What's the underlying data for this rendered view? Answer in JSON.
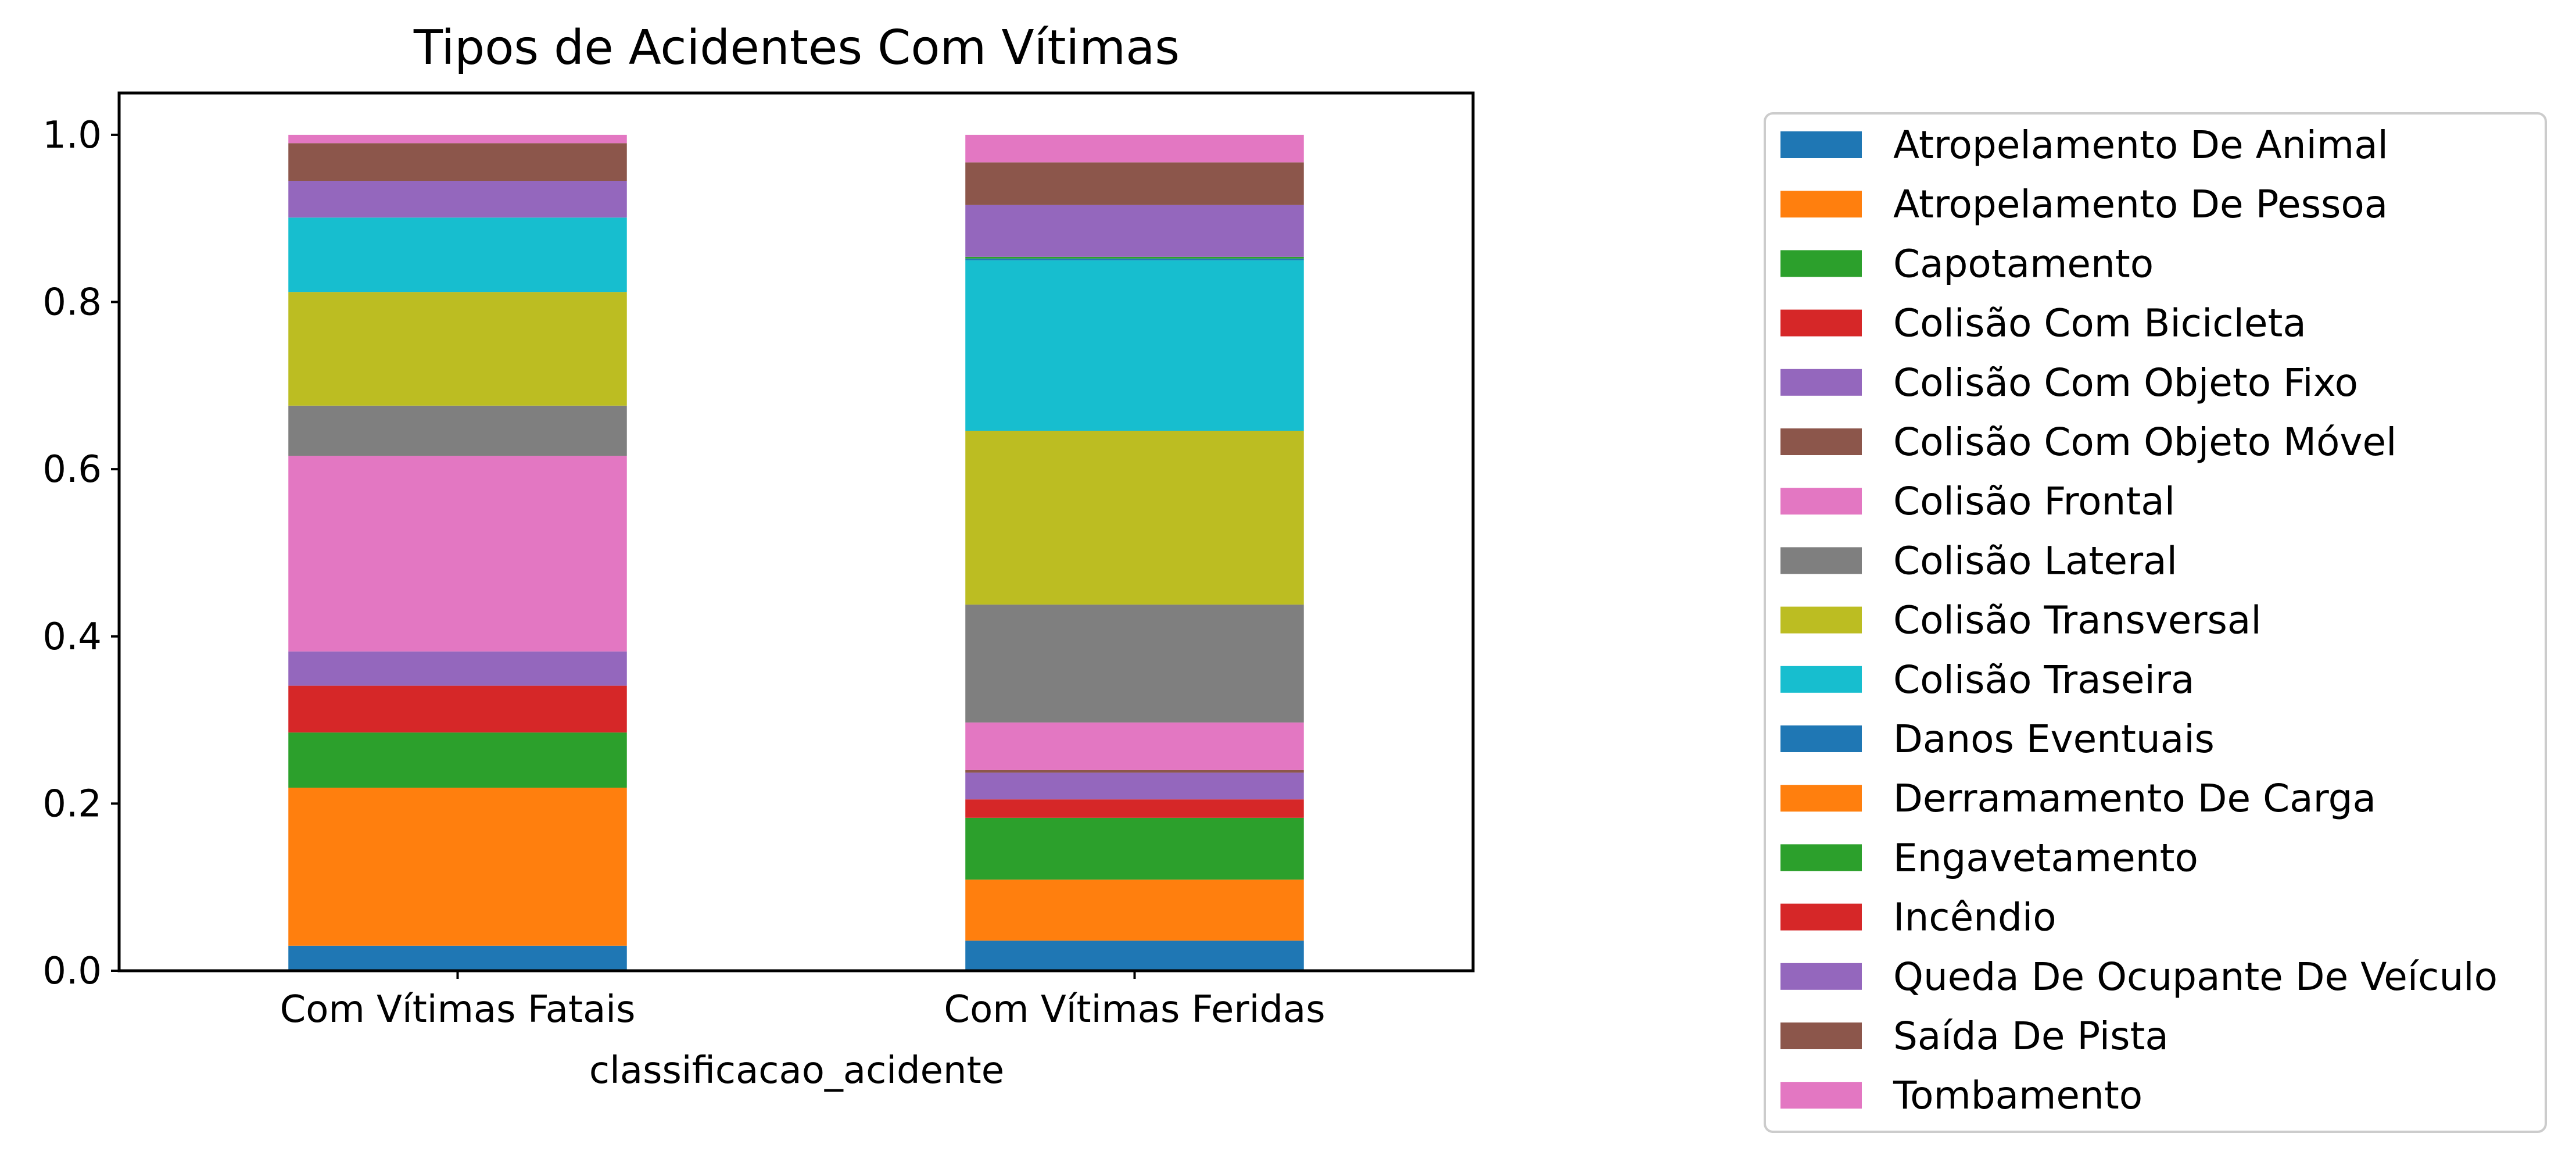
{
  "chart_data": {
    "type": "bar",
    "stacked": true,
    "title": "Tipos de Acidentes Com Vítimas",
    "xlabel": "classificacao_acidente",
    "ylabel": "",
    "categories": [
      "Com Vítimas Fatais",
      "Com Vítimas Feridas"
    ],
    "ylim": [
      0.0,
      1.05
    ],
    "yticks": [
      "0.0",
      "0.2",
      "0.4",
      "0.6",
      "0.8",
      "1.0"
    ],
    "grid": false,
    "legend_position": "right",
    "series": [
      {
        "name": "Atropelamento De Animal",
        "color": "#1f77b4",
        "values": [
          0.03,
          0.036
        ]
      },
      {
        "name": "Atropelamento De Pessoa",
        "color": "#ff7f0e",
        "values": [
          0.189,
          0.073
        ]
      },
      {
        "name": "Capotamento",
        "color": "#2ca02c",
        "values": [
          0.066,
          0.074
        ]
      },
      {
        "name": "Colisão Com Bicicleta",
        "color": "#d62728",
        "values": [
          0.056,
          0.022
        ]
      },
      {
        "name": "Colisão Com Objeto Fixo",
        "color": "#9467bd",
        "values": [
          0.041,
          0.032
        ]
      },
      {
        "name": "Colisão Com Objeto Móvel",
        "color": "#8c564b",
        "values": [
          0.0,
          0.003
        ]
      },
      {
        "name": "Colisão Frontal",
        "color": "#e377c2",
        "values": [
          0.234,
          0.057
        ]
      },
      {
        "name": "Colisão Lateral",
        "color": "#7f7f7f",
        "values": [
          0.06,
          0.141
        ]
      },
      {
        "name": "Colisão Transversal",
        "color": "#bcbd22",
        "values": [
          0.136,
          0.208
        ]
      },
      {
        "name": "Colisão Traseira",
        "color": "#17becf",
        "values": [
          0.089,
          0.204
        ]
      },
      {
        "name": "Danos Eventuais",
        "color": "#1f77b4",
        "values": [
          0.0,
          0.002
        ]
      },
      {
        "name": "Derramamento De Carga",
        "color": "#ff7f0e",
        "values": [
          0.0,
          0.0
        ]
      },
      {
        "name": "Engavetamento",
        "color": "#2ca02c",
        "values": [
          0.0,
          0.002
        ]
      },
      {
        "name": "Incêndio",
        "color": "#d62728",
        "values": [
          0.0,
          0.0
        ]
      },
      {
        "name": "Queda De Ocupante De Veículo",
        "color": "#9467bd",
        "values": [
          0.044,
          0.062
        ]
      },
      {
        "name": "Saída De Pista",
        "color": "#8c564b",
        "values": [
          0.045,
          0.051
        ]
      },
      {
        "name": "Tombamento",
        "color": "#e377c2",
        "values": [
          0.01,
          0.033
        ]
      }
    ]
  }
}
